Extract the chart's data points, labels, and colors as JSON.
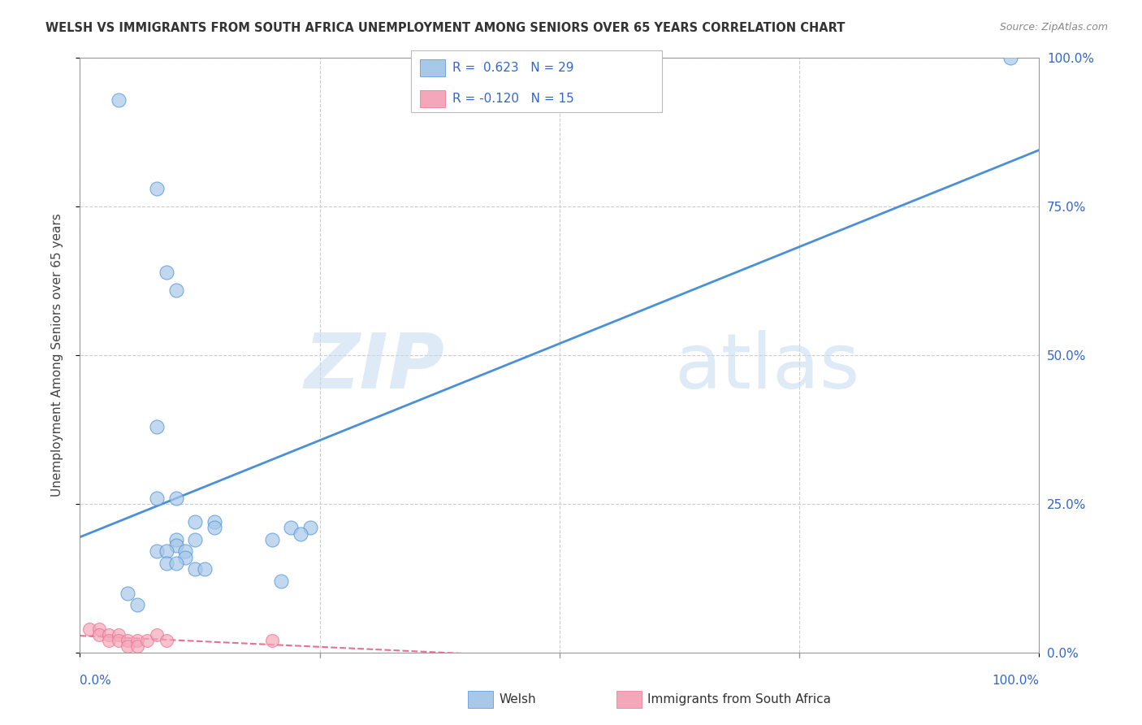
{
  "title": "WELSH VS IMMIGRANTS FROM SOUTH AFRICA UNEMPLOYMENT AMONG SENIORS OVER 65 YEARS CORRELATION CHART",
  "source": "Source: ZipAtlas.com",
  "ylabel": "Unemployment Among Seniors over 65 years",
  "xlim": [
    0,
    1.0
  ],
  "ylim": [
    0,
    1.0
  ],
  "xtick_labels_bottom": [
    "0.0%",
    "",
    "",
    "",
    "100.0%"
  ],
  "xtick_vals": [
    0.0,
    0.25,
    0.5,
    0.75,
    1.0
  ],
  "ytick_labels_right": [
    "0.0%",
    "25.0%",
    "50.0%",
    "75.0%",
    "100.0%"
  ],
  "ytick_vals": [
    0.0,
    0.25,
    0.5,
    0.75,
    1.0
  ],
  "welsh_r": 0.623,
  "welsh_n": 29,
  "sa_r": -0.12,
  "sa_n": 15,
  "welsh_color": "#a8c8e8",
  "sa_color": "#f4a7b9",
  "trendline_welsh_color": "#4a90d9",
  "trendline_sa_color": "#e87090",
  "watermark_zip": "ZIP",
  "watermark_atlas": "atlas",
  "welsh_points": [
    [
      0.04,
      0.93
    ],
    [
      0.08,
      0.78
    ],
    [
      0.09,
      0.64
    ],
    [
      0.1,
      0.61
    ],
    [
      0.08,
      0.38
    ],
    [
      0.08,
      0.26
    ],
    [
      0.1,
      0.26
    ],
    [
      0.12,
      0.22
    ],
    [
      0.14,
      0.22
    ],
    [
      0.14,
      0.21
    ],
    [
      0.12,
      0.19
    ],
    [
      0.1,
      0.19
    ],
    [
      0.1,
      0.18
    ],
    [
      0.08,
      0.17
    ],
    [
      0.09,
      0.17
    ],
    [
      0.11,
      0.17
    ],
    [
      0.11,
      0.16
    ],
    [
      0.09,
      0.15
    ],
    [
      0.1,
      0.15
    ],
    [
      0.12,
      0.14
    ],
    [
      0.13,
      0.14
    ],
    [
      0.2,
      0.19
    ],
    [
      0.22,
      0.21
    ],
    [
      0.24,
      0.21
    ],
    [
      0.23,
      0.2
    ],
    [
      0.21,
      0.12
    ],
    [
      0.05,
      0.1
    ],
    [
      0.97,
      1.0
    ],
    [
      0.06,
      0.08
    ]
  ],
  "sa_points": [
    [
      0.01,
      0.04
    ],
    [
      0.02,
      0.04
    ],
    [
      0.02,
      0.03
    ],
    [
      0.03,
      0.03
    ],
    [
      0.03,
      0.02
    ],
    [
      0.04,
      0.03
    ],
    [
      0.04,
      0.02
    ],
    [
      0.05,
      0.02
    ],
    [
      0.05,
      0.01
    ],
    [
      0.06,
      0.02
    ],
    [
      0.06,
      0.01
    ],
    [
      0.07,
      0.02
    ],
    [
      0.08,
      0.03
    ],
    [
      0.09,
      0.02
    ],
    [
      0.2,
      0.02
    ]
  ],
  "background_color": "#ffffff",
  "grid_color": "#cccccc"
}
